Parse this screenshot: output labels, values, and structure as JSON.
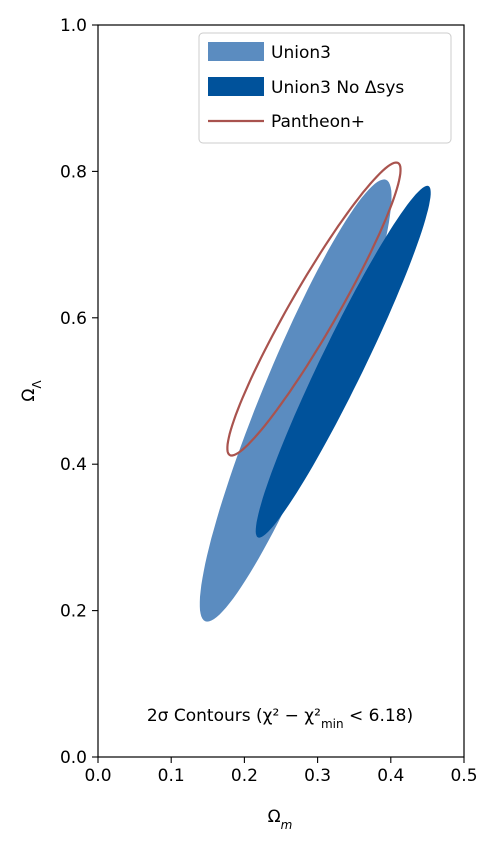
{
  "chart_data": {
    "type": "contour",
    "xlabel": "Ω",
    "xlabel_sub": "m",
    "ylabel": "Ω",
    "ylabel_sub": "Λ",
    "xlim": [
      0.0,
      0.5
    ],
    "ylim": [
      0.0,
      1.0
    ],
    "x_ticks": [
      {
        "value": 0.0,
        "label": "0.0"
      },
      {
        "value": 0.1,
        "label": "0.1"
      },
      {
        "value": 0.2,
        "label": "0.2"
      },
      {
        "value": 0.3,
        "label": "0.3"
      },
      {
        "value": 0.4,
        "label": "0.4"
      },
      {
        "value": 0.5,
        "label": "0.5"
      }
    ],
    "y_ticks": [
      {
        "value": 0.0,
        "label": "0.0"
      },
      {
        "value": 0.2,
        "label": "0.2"
      },
      {
        "value": 0.4,
        "label": "0.4"
      },
      {
        "value": 0.6,
        "label": "0.6"
      },
      {
        "value": 0.8,
        "label": "0.8"
      },
      {
        "value": 1.0,
        "label": "1.0"
      }
    ],
    "grid": false,
    "legend_position": "top-right",
    "series": [
      {
        "name": "Union3",
        "style": "filled",
        "color": "#5b8cc0",
        "contour": {
          "center_x": 0.27,
          "center_y": 0.487,
          "extreme_points": [
            [
              0.148,
              0.185
            ],
            [
              0.395,
              0.788
            ],
            [
              0.118,
              0.24
            ],
            [
              0.425,
              0.74
            ]
          ]
        }
      },
      {
        "name": "Union3 No Δsys",
        "style": "filled",
        "color": "#00529b",
        "contour": {
          "center_x": 0.335,
          "center_y": 0.54,
          "extreme_points": [
            [
              0.222,
              0.3
            ],
            [
              0.455,
              0.78
            ],
            [
              0.205,
              0.33
            ],
            [
              0.47,
              0.74
            ]
          ]
        }
      },
      {
        "name": "Pantheon+",
        "style": "outline",
        "color": "#a9534e",
        "contour": {
          "center_x": 0.295,
          "center_y": 0.612,
          "extreme_points": [
            [
              0.18,
              0.413
            ],
            [
              0.41,
              0.812
            ],
            [
              0.16,
              0.44
            ],
            [
              0.43,
              0.78
            ]
          ]
        }
      }
    ],
    "annotation": {
      "prefix": "2σ Contours (χ² − χ²",
      "subscript": "min",
      "suffix": " < 6.18)"
    }
  }
}
